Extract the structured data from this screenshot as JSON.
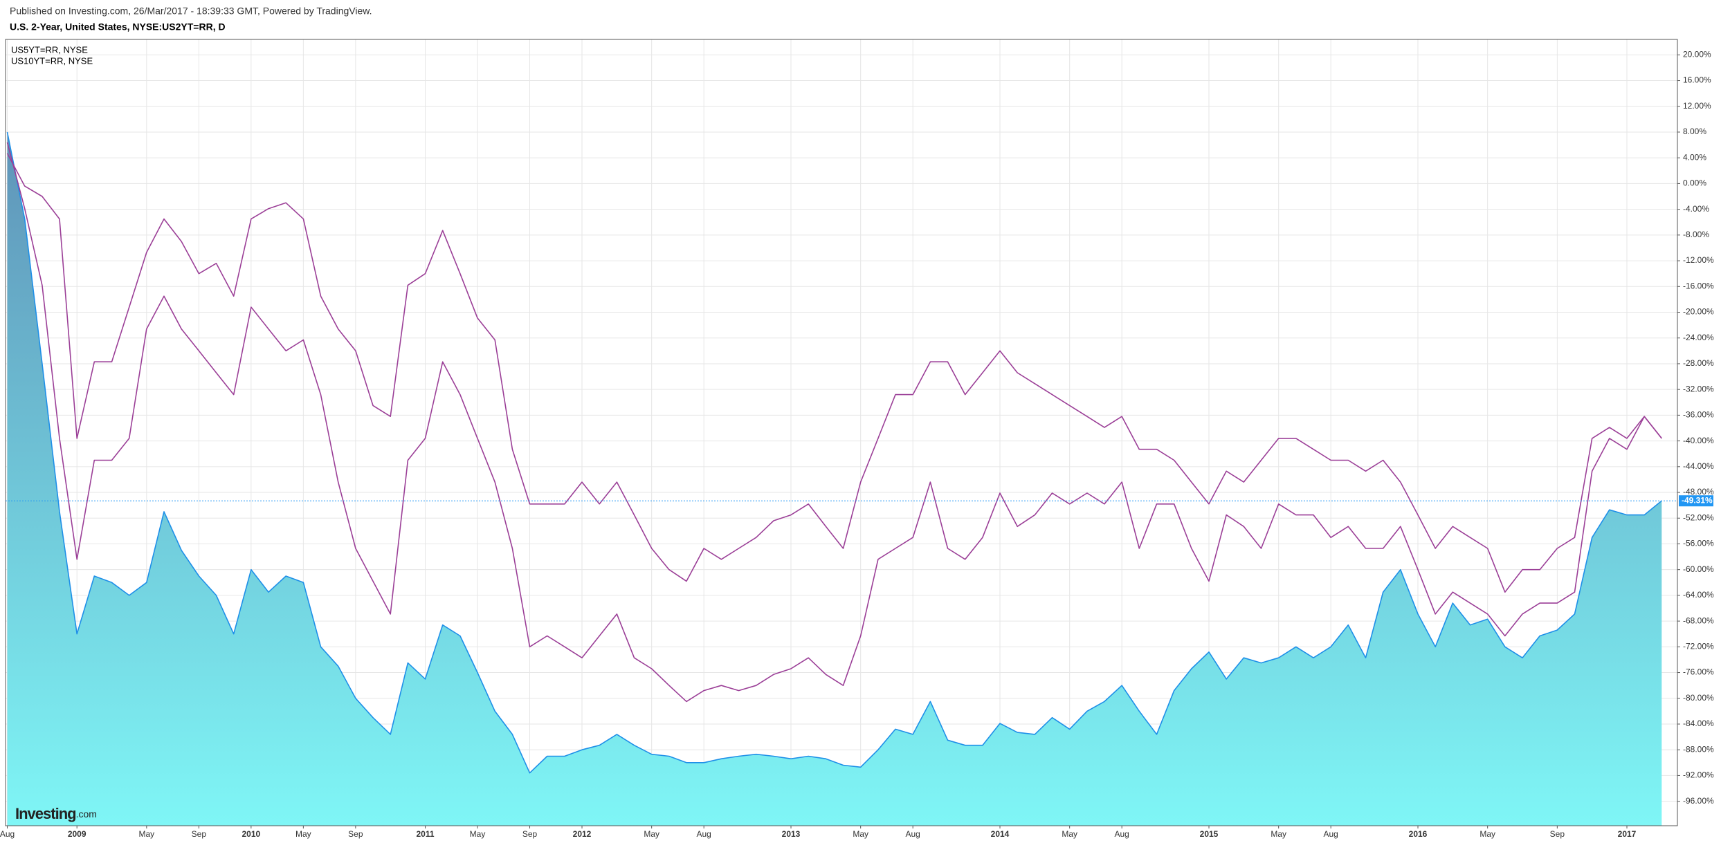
{
  "header": "Published on Investing.com, 26/Mar/2017 - 18:39:33 GMT, Powered by TradingView.",
  "chart_data": {
    "type": "line",
    "title": "U.S. 2-Year, United States, NYSE:US2YT=RR, D",
    "categories": [
      "Aug",
      null,
      null,
      null,
      "2009",
      null,
      null,
      null,
      "May",
      null,
      null,
      "Sep",
      null,
      null,
      "2010",
      null,
      null,
      "May",
      null,
      null,
      "Sep",
      null,
      null,
      null,
      "2011",
      null,
      null,
      "May",
      null,
      null,
      "Sep",
      null,
      null,
      "2012",
      null,
      null,
      null,
      "May",
      null,
      null,
      "Aug",
      null,
      null,
      null,
      null,
      "2013",
      null,
      null,
      null,
      "May",
      null,
      null,
      "Aug",
      null,
      null,
      null,
      null,
      "2014",
      null,
      null,
      null,
      "May",
      null,
      null,
      "Aug",
      null,
      null,
      null,
      null,
      "2015",
      null,
      null,
      null,
      "May",
      null,
      null,
      "Aug",
      null,
      null,
      null,
      null,
      "2016",
      null,
      null,
      null,
      "May",
      null,
      null,
      null,
      "Sep",
      null,
      null,
      null,
      "2017",
      null,
      null
    ],
    "series": [
      {
        "color": "#1e8fe8",
        "area": true,
        "fill_colors": [
          "#5f93b8",
          "#7ff6f6"
        ],
        "values": [
          8,
          -5.5,
          -28,
          -51,
          -70,
          -61,
          -62,
          -64,
          -62,
          -51,
          -57,
          -61,
          -64,
          -70,
          -60,
          -63.5,
          -61,
          -62,
          -72,
          -75,
          -80,
          -83,
          -85.6,
          -74.5,
          -77,
          -68.6,
          -70.3,
          -76,
          -82,
          -85.6,
          -91.6,
          -89,
          -89,
          -88,
          -87.3,
          -85.6,
          -87.3,
          -88.7,
          -89,
          -90,
          -90,
          -89.4,
          -89,
          -88.7,
          -89,
          -89.4,
          -89,
          -89.4,
          -90.4,
          -90.7,
          -88,
          -84.8,
          -85.6,
          -80.5,
          -86.5,
          -87.3,
          -87.3,
          -83.9,
          -85.3,
          -85.6,
          -83,
          -84.8,
          -82,
          -80.5,
          -78,
          -82,
          -85.6,
          -78.8,
          -75.4,
          -72.8,
          -77,
          -73.7,
          -74.5,
          -73.7,
          -72,
          -73.7,
          -72,
          -68.6,
          -73.7,
          -63.5,
          -60,
          -66.9,
          -72,
          -65.2,
          -68.6,
          -67.7,
          -72,
          -73.7,
          -70.3,
          -69.4,
          -66.9,
          -55,
          -50.7,
          -51.5,
          -51.5,
          -49.3
        ]
      },
      {
        "name": "US5YT=RR, NYSE",
        "color": "#9b3f97",
        "values": [
          6.4,
          -3.9,
          -15.8,
          -39.6,
          -58.4,
          -43,
          -43,
          -39.6,
          -22.6,
          -17.5,
          -22.6,
          -26,
          -29.4,
          -32.8,
          -19.2,
          -22.6,
          -26,
          -24.3,
          -32.8,
          -46.4,
          -56.7,
          -61.8,
          -66.9,
          -43,
          -39.6,
          -27.7,
          -32.8,
          -39.6,
          -46.4,
          -56.7,
          -72,
          -70.3,
          -72,
          -73.7,
          -70.3,
          -66.9,
          -73.7,
          -75.4,
          -78,
          -80.5,
          -78.8,
          -78,
          -78.8,
          -78,
          -76.3,
          -75.4,
          -73.7,
          -76.3,
          -78,
          -70.3,
          -58.4,
          -56.7,
          -55,
          -46.4,
          -56.7,
          -58.4,
          -55,
          -48.1,
          -53.3,
          -51.5,
          -48.1,
          -49.8,
          -48.1,
          -49.8,
          -46.4,
          -56.7,
          -49.8,
          -49.8,
          -56.7,
          -61.8,
          -51.5,
          -53.3,
          -56.7,
          -49.8,
          -51.5,
          -51.5,
          -55,
          -53.3,
          -56.7,
          -56.7,
          -53.3,
          -60,
          -66.9,
          -63.5,
          -65.2,
          -66.9,
          -70.3,
          -66.9,
          -65.2,
          -65.2,
          -63.5,
          -44.7,
          -39.6,
          -41.3,
          -36.2,
          -39.6
        ]
      },
      {
        "name": "US10YT=RR, NYSE",
        "color": "#9b3f97",
        "values": [
          4.7,
          -0.4,
          -2,
          -5.5,
          -39.6,
          -27.7,
          -27.7,
          -19.2,
          -10.7,
          -5.5,
          -9,
          -14,
          -12.4,
          -17.5,
          -5.5,
          -3.9,
          -3,
          -5.5,
          -17.5,
          -22.6,
          -26,
          -34.5,
          -36.2,
          -15.8,
          -14,
          -7.3,
          -14,
          -20.9,
          -24.3,
          -41.3,
          -49.8,
          -49.8,
          -49.8,
          -46.4,
          -49.8,
          -46.4,
          -51.5,
          -56.7,
          -60,
          -61.8,
          -56.7,
          -58.4,
          -56.7,
          -55,
          -52.4,
          -51.5,
          -49.8,
          -53.3,
          -56.7,
          -46.4,
          -39.6,
          -32.8,
          -32.8,
          -27.7,
          -27.7,
          -32.8,
          -29.4,
          -26,
          -29.4,
          -31.1,
          -32.8,
          -34.5,
          -36.2,
          -37.9,
          -36.2,
          -41.3,
          -41.3,
          -43,
          -46.4,
          -49.8,
          -44.7,
          -46.4,
          -43,
          -39.6,
          -39.6,
          -41.3,
          -43,
          -43,
          -44.7,
          -43,
          -46.4,
          -51.5,
          -56.7,
          -53.3,
          -55,
          -56.7,
          -63.5,
          -60,
          -60,
          -56.7,
          -55,
          -39.6,
          -37.9,
          -39.6,
          -36.2,
          -39.6
        ]
      }
    ],
    "ylim": [
      -99.8,
      22.4
    ],
    "yticks": [
      {
        "value": 20,
        "label": "20.00%"
      },
      {
        "value": 16,
        "label": "16.00%"
      },
      {
        "value": 12,
        "label": "12.00%"
      },
      {
        "value": 8,
        "label": "8.00%"
      },
      {
        "value": 4,
        "label": "4.00%"
      },
      {
        "value": 0,
        "label": "0.00%"
      },
      {
        "value": -4,
        "label": "-4.00%"
      },
      {
        "value": -8,
        "label": "-8.00%"
      },
      {
        "value": -12,
        "label": "-12.00%"
      },
      {
        "value": -16,
        "label": "-16.00%"
      },
      {
        "value": -20,
        "label": "-20.00%"
      },
      {
        "value": -24,
        "label": "-24.00%"
      },
      {
        "value": -28,
        "label": "-28.00%"
      },
      {
        "value": -32,
        "label": "-32.00%"
      },
      {
        "value": -36,
        "label": "-36.00%"
      },
      {
        "value": -40,
        "label": "-40.00%"
      },
      {
        "value": -44,
        "label": "-44.00%"
      },
      {
        "value": -48,
        "label": "-48.00%"
      },
      {
        "value": -52,
        "label": "-52.00%"
      },
      {
        "value": -56,
        "label": "-56.00%"
      },
      {
        "value": -60,
        "label": "-60.00%"
      },
      {
        "value": -64,
        "label": "-64.00%"
      },
      {
        "value": -68,
        "label": "-68.00%"
      },
      {
        "value": -72,
        "label": "-72.00%"
      },
      {
        "value": -76,
        "label": "-76.00%"
      },
      {
        "value": -80,
        "label": "-80.00%"
      },
      {
        "value": -84,
        "label": "-84.00%"
      },
      {
        "value": -88,
        "label": "-88.00%"
      },
      {
        "value": -92,
        "label": "-92.00%"
      },
      {
        "value": -96,
        "label": "-96.00%"
      }
    ],
    "current_value": {
      "value": -49.31,
      "label": "-49.31%",
      "color": "#2196f3"
    },
    "grid": true
  },
  "watermark": [
    "Investing",
    ".com"
  ]
}
